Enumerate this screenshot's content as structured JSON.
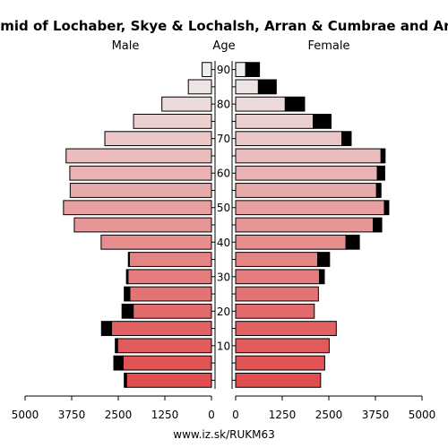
{
  "chart_data": {
    "type": "bar",
    "title": "ethnic Pyramid of Lochaber, Skye & Lochalsh, Arran & Cumbrae and Argyll & Bute",
    "left_label": "Male",
    "center_label": "Age",
    "right_label": "Female",
    "footer": "www.iz.sk/RUKM63",
    "age_groups": [
      "0-4",
      "5-9",
      "10-14",
      "15-19",
      "20-24",
      "25-29",
      "30-34",
      "35-39",
      "40-44",
      "45-49",
      "50-54",
      "55-59",
      "60-64",
      "65-69",
      "70-74",
      "75-79",
      "80-84",
      "85-89",
      "90+"
    ],
    "age_tick_labels": [
      "10",
      "20",
      "30",
      "40",
      "50",
      "60",
      "70",
      "80",
      "90"
    ],
    "x_tick_labels": [
      "5000",
      "3750",
      "2500",
      "1250",
      "0",
      "0",
      "1250",
      "2500",
      "3750",
      "5000"
    ],
    "xlim": [
      0,
      5000
    ],
    "series": [
      {
        "name": "Male",
        "values": [
          2280,
          2370,
          2520,
          2680,
          2100,
          2190,
          2240,
          2200,
          2960,
          3680,
          3970,
          3790,
          3800,
          3900,
          2860,
          2090,
          1330,
          620,
          250
        ]
      },
      {
        "name": "Male",
        "values": [
          60,
          250,
          60,
          270,
          300,
          150,
          40,
          30,
          0,
          0,
          0,
          0,
          0,
          0,
          0,
          0,
          0,
          0,
          0
        ]
      },
      {
        "name": "Female",
        "values": [
          2280,
          2390,
          2510,
          2700,
          2110,
          2220,
          2250,
          2200,
          2960,
          3690,
          3990,
          3780,
          3800,
          3900,
          2850,
          2080,
          1330,
          610,
          270
        ]
      },
      {
        "name": "Female",
        "values": [
          0,
          0,
          0,
          0,
          0,
          0,
          130,
          320,
          360,
          230,
          120,
          120,
          200,
          110,
          250,
          480,
          520,
          480,
          370
        ]
      }
    ],
    "colors": {
      "female_second": "#000000",
      "outline": "#000000"
    }
  }
}
